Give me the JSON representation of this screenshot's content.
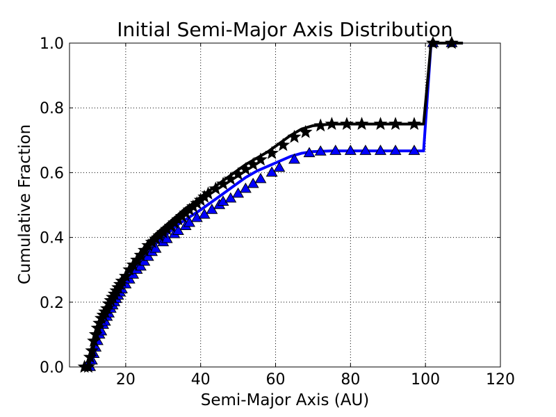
{
  "chart_data": {
    "type": "line",
    "title": "Initial Semi-Major Axis Distribution",
    "xlabel": "Semi-Major Axis (AU)",
    "ylabel": "Cumulative Fraction",
    "xlim": [
      5,
      120
    ],
    "ylim": [
      0.0,
      1.0
    ],
    "xticks": [
      20,
      40,
      60,
      80,
      100,
      120
    ],
    "xtick_labels": [
      "20",
      "40",
      "60",
      "80",
      "100",
      "120"
    ],
    "yticks": [
      0.0,
      0.2,
      0.4,
      0.6,
      0.8,
      1.0
    ],
    "ytick_labels": [
      "0.0",
      "0.2",
      "0.4",
      "0.6",
      "0.8",
      "1.0"
    ],
    "grid": true,
    "series": [
      {
        "color": "#0000ff",
        "marker": "triangle",
        "line_x": [
          9.5,
          10,
          11,
          12,
          13,
          14,
          15,
          16,
          17,
          18,
          19,
          20,
          22,
          24,
          26,
          28,
          30,
          32,
          34,
          36,
          38,
          40,
          43,
          46,
          49,
          52,
          55,
          58,
          61,
          64,
          67,
          70,
          75,
          80,
          85,
          90,
          95,
          99.5,
          101.5,
          110
        ],
        "line_y": [
          0.0,
          0.0,
          0.03,
          0.07,
          0.1,
          0.13,
          0.155,
          0.18,
          0.205,
          0.225,
          0.245,
          0.265,
          0.3,
          0.33,
          0.355,
          0.38,
          0.4,
          0.42,
          0.44,
          0.455,
          0.47,
          0.485,
          0.51,
          0.535,
          0.56,
          0.585,
          0.605,
          0.62,
          0.635,
          0.65,
          0.66,
          0.665,
          0.667,
          0.667,
          0.667,
          0.667,
          0.667,
          0.667,
          1.0,
          1.0
        ],
        "marker_x": [
          9.5,
          10.5,
          11,
          11.5,
          12,
          12.5,
          13,
          13.5,
          14,
          14.5,
          15,
          15.5,
          16,
          16.5,
          17,
          17.5,
          18,
          18.5,
          19,
          20,
          21,
          22,
          23,
          24,
          25,
          26,
          27,
          28,
          30,
          31,
          33,
          34,
          36,
          37,
          39,
          41,
          43,
          45,
          46,
          48,
          50,
          52,
          54,
          56,
          59,
          61,
          65,
          69,
          72,
          76,
          80,
          84,
          88,
          92,
          97,
          102,
          107
        ],
        "marker_y": [
          0.0,
          0.0,
          0.02,
          0.04,
          0.06,
          0.08,
          0.1,
          0.11,
          0.13,
          0.14,
          0.155,
          0.165,
          0.18,
          0.19,
          0.2,
          0.21,
          0.22,
          0.23,
          0.24,
          0.255,
          0.27,
          0.285,
          0.3,
          0.31,
          0.325,
          0.34,
          0.355,
          0.365,
          0.385,
          0.395,
          0.41,
          0.42,
          0.435,
          0.445,
          0.46,
          0.47,
          0.485,
          0.5,
          0.51,
          0.52,
          0.535,
          0.55,
          0.565,
          0.58,
          0.6,
          0.615,
          0.64,
          0.66,
          0.665,
          0.667,
          0.667,
          0.667,
          0.667,
          0.667,
          0.667,
          1.0,
          1.0
        ]
      },
      {
        "color": "#000000",
        "marker": "star",
        "line_x": [
          9,
          10,
          11,
          12,
          13,
          14,
          15,
          16,
          17,
          18,
          19,
          20,
          22,
          24,
          26,
          28,
          30,
          32,
          34,
          36,
          38,
          40,
          43,
          46,
          49,
          52,
          55,
          58,
          61,
          64,
          67,
          70,
          75,
          80,
          85,
          90,
          95,
          99.5,
          101.5,
          110
        ],
        "line_y": [
          0.0,
          0.0,
          0.04,
          0.09,
          0.125,
          0.155,
          0.18,
          0.205,
          0.225,
          0.245,
          0.265,
          0.28,
          0.32,
          0.355,
          0.385,
          0.41,
          0.43,
          0.45,
          0.47,
          0.49,
          0.505,
          0.525,
          0.55,
          0.575,
          0.6,
          0.625,
          0.645,
          0.665,
          0.69,
          0.715,
          0.735,
          0.745,
          0.75,
          0.75,
          0.75,
          0.75,
          0.75,
          0.75,
          1.0,
          1.0
        ],
        "marker_x": [
          9,
          10,
          10.5,
          11,
          11.5,
          12,
          12.5,
          13,
          13.5,
          14,
          14.5,
          15,
          15.5,
          16,
          16.5,
          17,
          17.5,
          18,
          18.5,
          19,
          20,
          21,
          22,
          23,
          24,
          25,
          26,
          27,
          28,
          29,
          30,
          31,
          32,
          33,
          34,
          35,
          36,
          37,
          38,
          39,
          40,
          41,
          42,
          44,
          46,
          48,
          50,
          52,
          54,
          56,
          59,
          62,
          65,
          68,
          72,
          75,
          79,
          83,
          88,
          92,
          97,
          102,
          107
        ],
        "marker_y": [
          0.0,
          0.0,
          0.03,
          0.05,
          0.08,
          0.1,
          0.12,
          0.135,
          0.15,
          0.16,
          0.17,
          0.18,
          0.195,
          0.205,
          0.215,
          0.225,
          0.235,
          0.245,
          0.255,
          0.265,
          0.28,
          0.3,
          0.315,
          0.33,
          0.345,
          0.36,
          0.375,
          0.385,
          0.395,
          0.405,
          0.415,
          0.425,
          0.435,
          0.445,
          0.455,
          0.465,
          0.475,
          0.485,
          0.495,
          0.505,
          0.515,
          0.525,
          0.535,
          0.55,
          0.565,
          0.58,
          0.595,
          0.61,
          0.625,
          0.64,
          0.66,
          0.685,
          0.71,
          0.725,
          0.745,
          0.75,
          0.75,
          0.75,
          0.75,
          0.75,
          0.75,
          1.0,
          1.0
        ]
      }
    ]
  }
}
